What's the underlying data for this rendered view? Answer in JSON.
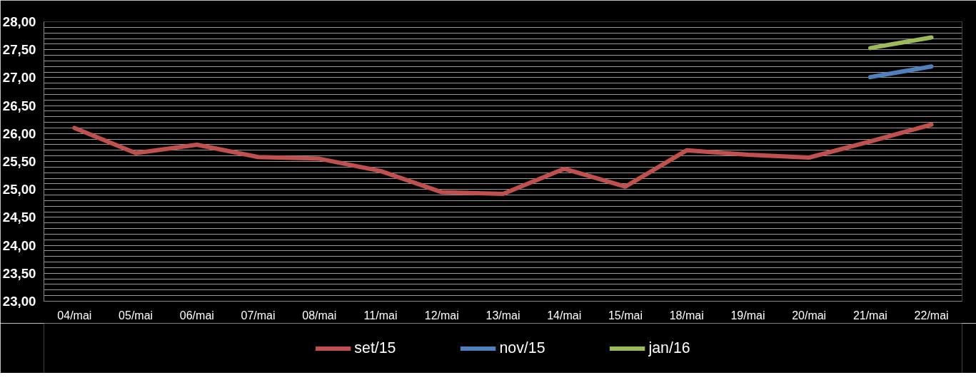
{
  "chart_data": {
    "type": "line",
    "categories": [
      "04/mai",
      "05/mai",
      "06/mai",
      "07/mai",
      "08/mai",
      "11/mai",
      "12/mai",
      "13/mai",
      "14/mai",
      "15/mai",
      "18/mai",
      "19/mai",
      "20/mai",
      "21/mai",
      "22/mai"
    ],
    "series": [
      {
        "name": "set/15",
        "color": "#c0504d",
        "values": [
          26.1,
          25.65,
          25.8,
          25.58,
          25.55,
          25.33,
          24.95,
          24.92,
          25.37,
          25.05,
          25.7,
          25.62,
          25.57,
          25.86,
          26.16
        ]
      },
      {
        "name": "nov/15",
        "color": "#4f81bd",
        "values": [
          null,
          null,
          null,
          null,
          null,
          null,
          null,
          null,
          null,
          null,
          null,
          null,
          null,
          27.01,
          27.2
        ]
      },
      {
        "name": "jan/16",
        "color": "#9bbb59",
        "values": [
          null,
          null,
          null,
          null,
          null,
          null,
          null,
          null,
          null,
          null,
          null,
          null,
          null,
          27.53,
          27.72
        ]
      }
    ],
    "ylim": [
      23,
      28
    ],
    "yticks": [
      {
        "value": 23,
        "label": "23,00"
      },
      {
        "value": 23.5,
        "label": "23,50"
      },
      {
        "value": 24,
        "label": "24,00"
      },
      {
        "value": 24.5,
        "label": "24,50"
      },
      {
        "value": 25,
        "label": "25,00"
      },
      {
        "value": 25.5,
        "label": "25,50"
      },
      {
        "value": 26,
        "label": "26,00"
      },
      {
        "value": 26.5,
        "label": "26,50"
      },
      {
        "value": 27,
        "label": "27,00"
      },
      {
        "value": 27.5,
        "label": "27,50"
      },
      {
        "value": 28,
        "label": "28,00"
      }
    ],
    "grid": "y",
    "legend": "bottom",
    "marker": "none",
    "line_style": "solid"
  }
}
